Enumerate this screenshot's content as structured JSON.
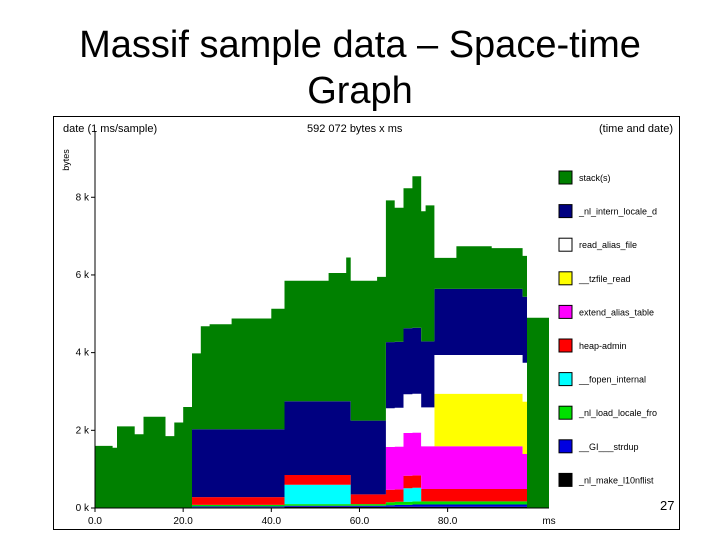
{
  "slide": {
    "title_line1": "Massif sample data – Space-time",
    "title_line2": "Graph",
    "page_number": "27"
  },
  "chart_data": {
    "type": "area",
    "stacked": true,
    "header_left": "date (1 ms/sample)",
    "header_center": "592 072 bytes x ms",
    "header_right": "(time and date)",
    "ylabel": "bytes",
    "xlabel": "ms",
    "x_ticks": [
      "0.0",
      "20.0",
      "40.0",
      "60.0",
      "80.0"
    ],
    "x_tick_values": [
      0,
      20,
      40,
      60,
      80
    ],
    "y_ticks": [
      "0 k",
      "2 k",
      "4 k",
      "6 k",
      "8 k"
    ],
    "y_tick_values": [
      0,
      2000,
      4000,
      6000,
      8000
    ],
    "xlim": [
      0,
      103
    ],
    "ylim": [
      0,
      9500
    ],
    "x": [
      0,
      4,
      5,
      9,
      11,
      16,
      18,
      20,
      22,
      24,
      26,
      31,
      35,
      40,
      43,
      53,
      57,
      58,
      64,
      66,
      68,
      70,
      72,
      74,
      75,
      77,
      82,
      90,
      97,
      98
    ],
    "series": [
      {
        "name": "_nl_make_l10nflist",
        "color": "#000000",
        "values": [
          0,
          0,
          0,
          0,
          0,
          0,
          0,
          0,
          20,
          20,
          20,
          20,
          20,
          20,
          30,
          30,
          30,
          30,
          30,
          30,
          30,
          30,
          30,
          30,
          30,
          30,
          30,
          30,
          30,
          0
        ]
      },
      {
        "name": "__GI___strdup",
        "color": "#0000e0",
        "values": [
          0,
          0,
          0,
          0,
          0,
          0,
          0,
          0,
          20,
          20,
          20,
          20,
          20,
          20,
          30,
          30,
          30,
          30,
          30,
          40,
          50,
          50,
          60,
          60,
          60,
          60,
          60,
          60,
          60,
          0
        ]
      },
      {
        "name": "_nl_load_locale_fro",
        "color": "#00e000",
        "values": [
          0,
          0,
          0,
          0,
          0,
          0,
          0,
          0,
          40,
          40,
          40,
          40,
          40,
          40,
          40,
          40,
          40,
          40,
          40,
          80,
          80,
          80,
          80,
          80,
          80,
          80,
          80,
          80,
          80,
          0
        ]
      },
      {
        "name": "__fopen_internal",
        "color": "#00ffff",
        "values": [
          0,
          0,
          0,
          0,
          0,
          0,
          0,
          0,
          0,
          0,
          0,
          0,
          0,
          0,
          500,
          500,
          500,
          0,
          0,
          0,
          0,
          350,
          350,
          0,
          0,
          0,
          0,
          0,
          0,
          0
        ]
      },
      {
        "name": "heap-admin",
        "color": "#ff0000",
        "values": [
          0,
          0,
          0,
          0,
          0,
          0,
          0,
          0,
          200,
          200,
          200,
          200,
          200,
          200,
          250,
          250,
          250,
          250,
          250,
          320,
          320,
          320,
          320,
          320,
          320,
          320,
          320,
          320,
          320,
          0
        ]
      },
      {
        "name": "extend_alias_table",
        "color": "#ff00ff",
        "values": [
          0,
          0,
          0,
          0,
          0,
          0,
          0,
          0,
          0,
          0,
          0,
          0,
          0,
          0,
          0,
          0,
          0,
          0,
          0,
          1100,
          1100,
          1100,
          1100,
          1100,
          1100,
          1100,
          1100,
          1100,
          900,
          0
        ]
      },
      {
        "name": "__tzfile_read",
        "color": "#ffff00",
        "values": [
          0,
          0,
          0,
          0,
          0,
          0,
          0,
          0,
          0,
          0,
          0,
          0,
          0,
          0,
          0,
          0,
          0,
          0,
          0,
          0,
          0,
          0,
          0,
          0,
          0,
          1350,
          1350,
          1350,
          1350,
          0
        ]
      },
      {
        "name": "read_alias_file",
        "color": "#ffffff",
        "values": [
          0,
          0,
          0,
          0,
          0,
          0,
          0,
          0,
          0,
          0,
          0,
          0,
          0,
          0,
          0,
          0,
          0,
          0,
          0,
          1000,
          1000,
          1000,
          1000,
          1000,
          1000,
          1000,
          1000,
          1000,
          1000,
          0
        ]
      },
      {
        "name": "_nl_intern_locale_d",
        "color": "#000080",
        "values": [
          0,
          0,
          0,
          0,
          0,
          0,
          0,
          0,
          1750,
          1750,
          1750,
          1750,
          1750,
          1750,
          1900,
          1900,
          1900,
          1900,
          1900,
          1700,
          1700,
          1700,
          1700,
          1700,
          1700,
          1700,
          1700,
          1700,
          1700,
          0
        ]
      },
      {
        "name": "stack(s)",
        "color": "#008000",
        "values": [
          1600,
          1550,
          2100,
          1900,
          2350,
          1850,
          2200,
          2600,
          1950,
          2650,
          2700,
          2850,
          2850,
          3100,
          3100,
          3300,
          3700,
          3600,
          3700,
          3650,
          3450,
          3600,
          3900,
          3350,
          3500,
          800,
          1100,
          1050,
          1050,
          4900
        ]
      }
    ],
    "legend_position": "right",
    "grid": false
  }
}
